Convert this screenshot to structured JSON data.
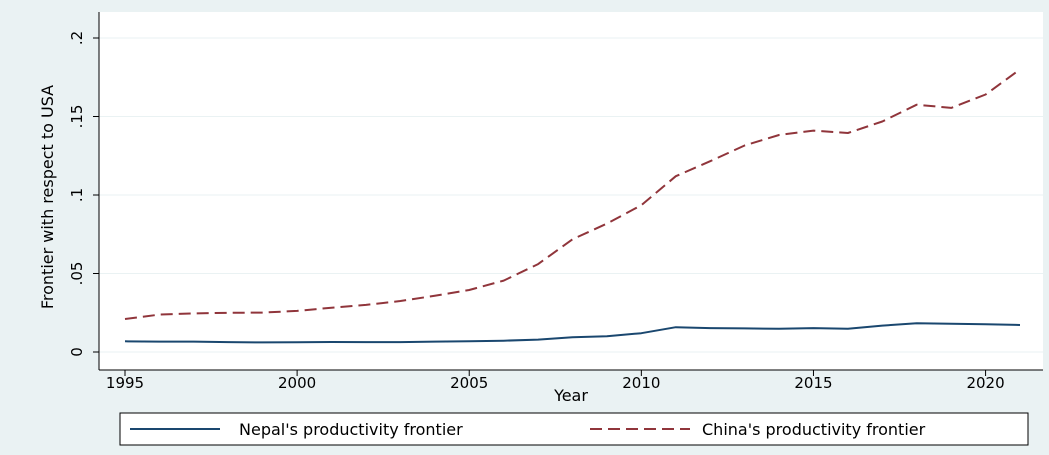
{
  "chart_data": {
    "type": "line",
    "xlabel": "Year",
    "ylabel": "Frontier with respect to USA",
    "xlim": [
      1995,
      2021
    ],
    "ylim": [
      0,
      0.2
    ],
    "xticks": [
      1995,
      2000,
      2005,
      2010,
      2015,
      2020
    ],
    "yticks": [
      {
        "value": 0,
        "label": "0"
      },
      {
        "value": 0.05,
        "label": ".05"
      },
      {
        "value": 0.1,
        "label": ".1"
      },
      {
        "value": 0.15,
        "label": ".15"
      },
      {
        "value": 0.2,
        "label": ".2"
      }
    ],
    "grid": true,
    "legend_position": "bottom",
    "x": [
      1995,
      1996,
      1997,
      1998,
      1999,
      2000,
      2001,
      2002,
      2003,
      2004,
      2005,
      2006,
      2007,
      2008,
      2009,
      2010,
      2011,
      2012,
      2013,
      2014,
      2015,
      2016,
      2017,
      2018,
      2019,
      2020,
      2021
    ],
    "series": [
      {
        "name": "Nepal's productivity frontier",
        "color": "#1a476f",
        "style": "solid",
        "values": [
          0.0068,
          0.0066,
          0.0066,
          0.0063,
          0.0061,
          0.0062,
          0.0064,
          0.0063,
          0.0063,
          0.0066,
          0.0069,
          0.0072,
          0.0079,
          0.0094,
          0.01,
          0.012,
          0.0158,
          0.0152,
          0.015,
          0.0148,
          0.0152,
          0.0148,
          0.0168,
          0.0183,
          0.018,
          0.0177,
          0.0172
        ]
      },
      {
        "name": "China's productivity frontier",
        "color": "#90353b",
        "style": "dashed",
        "values": [
          0.021,
          0.0238,
          0.0246,
          0.025,
          0.0251,
          0.0262,
          0.0282,
          0.03,
          0.0325,
          0.0358,
          0.0395,
          0.0455,
          0.056,
          0.0718,
          0.0818,
          0.0935,
          0.112,
          0.1215,
          0.1315,
          0.1382,
          0.141,
          0.1395,
          0.1468,
          0.1575,
          0.1555,
          0.164,
          0.18
        ]
      }
    ]
  }
}
